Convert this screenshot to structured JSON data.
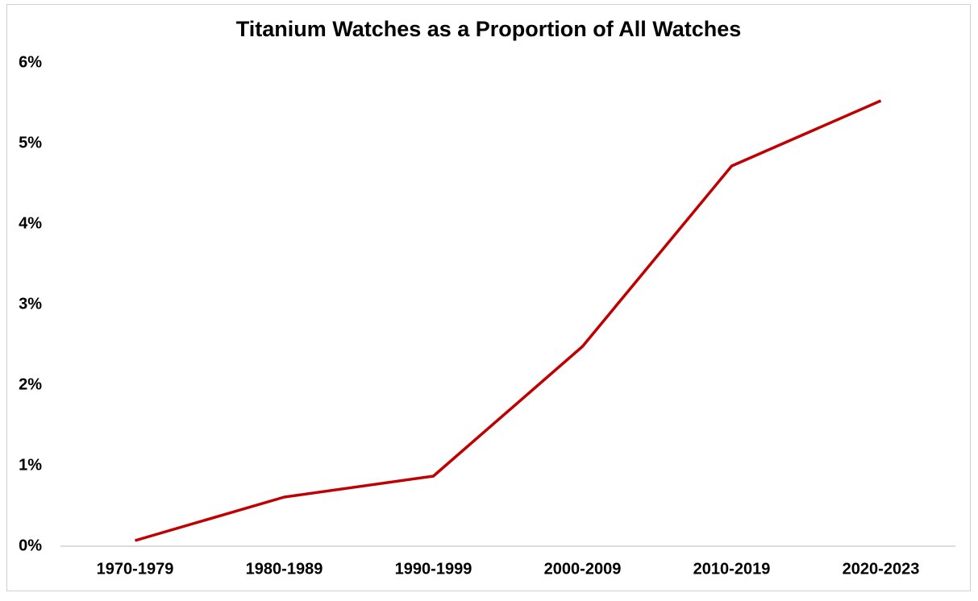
{
  "chart_data": {
    "type": "line",
    "title": "Titanium Watches as a Proportion of All Watches",
    "categories": [
      "1970-1979",
      "1980-1989",
      "1990-1999",
      "2000-2009",
      "2010-2019",
      "2020-2023"
    ],
    "values": [
      0.07,
      0.61,
      0.87,
      2.48,
      4.72,
      5.53
    ],
    "color": "#c00000",
    "ylim": [
      0,
      6
    ],
    "yticks": [
      {
        "value": 0,
        "label": "0%"
      },
      {
        "value": 1,
        "label": "1%"
      },
      {
        "value": 2,
        "label": "2%"
      },
      {
        "value": 3,
        "label": "3%"
      },
      {
        "value": 4,
        "label": "4%"
      },
      {
        "value": 5,
        "label": "5%"
      },
      {
        "value": 6,
        "label": "6%"
      }
    ],
    "grid": false
  }
}
